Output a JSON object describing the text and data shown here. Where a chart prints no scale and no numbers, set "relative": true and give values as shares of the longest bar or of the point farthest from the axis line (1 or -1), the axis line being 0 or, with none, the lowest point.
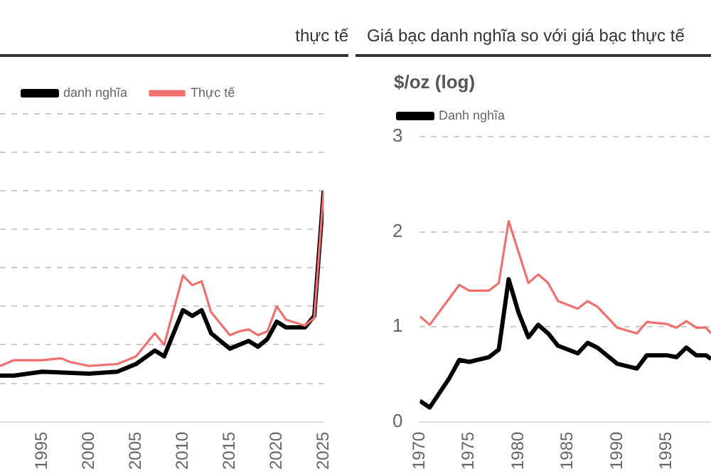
{
  "chart_data": [
    {
      "type": "line",
      "title": "thực tế",
      "relative": true,
      "grid": "y",
      "legend": "top left",
      "tick_labels": "x",
      "xlim": [
        1990.5,
        2025
      ],
      "xticks": [
        1995,
        2000,
        2005,
        2010,
        2015,
        2020,
        2025
      ],
      "series": [
        {
          "name": "danh nghĩa",
          "color": "#000000",
          "x": [
            1990.5,
            1992,
            1995,
            2000,
            2003,
            2005,
            2007,
            2008,
            2010,
            2011,
            2012,
            2013,
            2015,
            2017,
            2018,
            2019,
            2020,
            2021,
            2023,
            2024,
            2025
          ],
          "values": [
            0.04,
            0.04,
            0.06,
            0.05,
            0.06,
            0.1,
            0.17,
            0.14,
            0.38,
            0.35,
            0.38,
            0.26,
            0.18,
            0.22,
            0.19,
            0.23,
            0.32,
            0.29,
            0.29,
            0.35,
            1
          ]
        },
        {
          "name": "Thực tế",
          "color": "#f07070",
          "x": [
            1990.5,
            1992,
            1995,
            1997,
            1998,
            2000,
            2003,
            2005,
            2007,
            2008,
            2010,
            2011,
            2012,
            2013,
            2015,
            2016,
            2017,
            2018,
            2019,
            2020,
            2021,
            2023,
            2024,
            2025
          ],
          "values": [
            0.09,
            0.12,
            0.12,
            0.13,
            0.11,
            0.09,
            0.1,
            0.14,
            0.26,
            0.2,
            0.56,
            0.51,
            0.53,
            0.37,
            0.25,
            0.27,
            0.28,
            0.25,
            0.27,
            0.4,
            0.33,
            0.3,
            0.34,
            1
          ]
        }
      ]
    },
    {
      "type": "line",
      "title": "Giá bạc danh nghĩa so với giá bạc thực tế",
      "ylabel": "$/oz (log)",
      "grid": "y",
      "legend": "top left",
      "xlim": [
        1970,
        1999.5
      ],
      "xticks": [
        1970,
        1975,
        1980,
        1985,
        1990,
        1995
      ],
      "ylim": [
        0,
        3
      ],
      "yticks": [
        0,
        1,
        2,
        3
      ],
      "series": [
        {
          "name": "Danh nghĩa",
          "color": "#000000",
          "x": [
            1970,
            1971,
            1973,
            1974,
            1975,
            1977,
            1978,
            1979,
            1980,
            1981,
            1982,
            1983,
            1984,
            1986,
            1987,
            1988,
            1990,
            1992,
            1993,
            1995,
            1996,
            1997,
            1998,
            1999,
            1999.5
          ],
          "values": [
            0.22,
            0.15,
            0.46,
            0.65,
            0.63,
            0.68,
            0.76,
            1.5,
            1.15,
            0.89,
            1.02,
            0.93,
            0.8,
            0.72,
            0.83,
            0.78,
            0.61,
            0.56,
            0.7,
            0.7,
            0.68,
            0.78,
            0.7,
            0.7,
            0.66
          ]
        },
        {
          "color": "#f07070",
          "x": [
            1970,
            1971,
            1973,
            1974,
            1975,
            1977,
            1978,
            1979,
            1981,
            1982,
            1983,
            1984,
            1986,
            1987,
            1988,
            1990,
            1992,
            1993,
            1995,
            1996,
            1997,
            1998,
            1999,
            1999.5
          ],
          "values": [
            1.11,
            1.02,
            1.3,
            1.44,
            1.38,
            1.38,
            1.46,
            2.11,
            1.46,
            1.55,
            1.46,
            1.27,
            1.19,
            1.27,
            1.21,
            0.99,
            0.93,
            1.05,
            1.03,
            0.99,
            1.06,
            0.99,
            0.99,
            0.93
          ]
        }
      ]
    }
  ]
}
